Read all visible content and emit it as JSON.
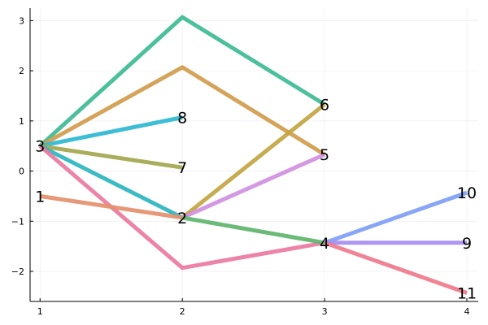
{
  "chart_data": {
    "type": "line",
    "title": "",
    "xlabel": "",
    "ylabel": "",
    "xlim": [
      0.93,
      4.08
    ],
    "ylim": [
      -2.6,
      3.25
    ],
    "x_ticks": [
      1,
      2,
      3,
      4
    ],
    "x_tick_labels": [
      "1",
      "2",
      "3",
      "4"
    ],
    "y_ticks": [
      -2,
      -1,
      0,
      1,
      2,
      3
    ],
    "y_tick_labels": [
      "−2",
      "−1",
      "0",
      "1",
      "2",
      "3"
    ],
    "grid": true,
    "legend": "none",
    "nodes": [
      {
        "id": "1",
        "x": 1,
        "y": -0.5
      },
      {
        "id": "3",
        "x": 1,
        "y": 0.5
      },
      {
        "id": "2",
        "x": 2,
        "y": -0.93
      },
      {
        "id": "7",
        "x": 2,
        "y": 0.07
      },
      {
        "id": "8",
        "x": 2,
        "y": 1.07
      },
      {
        "id": "6",
        "x": 3,
        "y": 1.33
      },
      {
        "id": "5",
        "x": 3,
        "y": 0.33
      },
      {
        "id": "4",
        "x": 3,
        "y": -1.43
      },
      {
        "id": "10",
        "x": 4,
        "y": -0.43
      },
      {
        "id": "9",
        "x": 4,
        "y": -1.43
      },
      {
        "id": "11",
        "x": 4,
        "y": -2.43
      }
    ],
    "edges": [
      {
        "points": [
          [
            1,
            0.5
          ],
          [
            2,
            3.07
          ],
          [
            3,
            1.33
          ]
        ],
        "color": "#3dbb95"
      },
      {
        "points": [
          [
            1,
            0.5
          ],
          [
            2,
            2.07
          ],
          [
            3,
            0.33
          ]
        ],
        "color": "#d19b4b"
      },
      {
        "points": [
          [
            1,
            0.5
          ],
          [
            2,
            1.07
          ]
        ],
        "color": "#2cb8d2"
      },
      {
        "points": [
          [
            1,
            0.5
          ],
          [
            2,
            0.07
          ]
        ],
        "color": "#a3a74e"
      },
      {
        "points": [
          [
            1,
            0.5
          ],
          [
            2,
            -0.93
          ]
        ],
        "color": "#2bb5bf"
      },
      {
        "points": [
          [
            1,
            0.5
          ],
          [
            2,
            -1.93
          ],
          [
            3,
            -1.43
          ]
        ],
        "color": "#ec7aa0"
      },
      {
        "points": [
          [
            1,
            -0.5
          ],
          [
            2,
            -0.93
          ]
        ],
        "color": "#e48f6d"
      },
      {
        "points": [
          [
            2,
            -0.93
          ],
          [
            3,
            1.33
          ]
        ],
        "color": "#c2a542"
      },
      {
        "points": [
          [
            2,
            -0.93
          ],
          [
            3,
            0.33
          ]
        ],
        "color": "#d18fdf"
      },
      {
        "points": [
          [
            2,
            -0.93
          ],
          [
            3,
            -1.43
          ]
        ],
        "color": "#5fb46c"
      },
      {
        "points": [
          [
            3,
            -1.43
          ],
          [
            4,
            -0.43
          ]
        ],
        "color": "#7f9ef5"
      },
      {
        "points": [
          [
            3,
            -1.43
          ],
          [
            4,
            -1.43
          ]
        ],
        "color": "#a58df0"
      },
      {
        "points": [
          [
            3,
            -1.43
          ],
          [
            4,
            -2.43
          ]
        ],
        "color": "#ef7a8c"
      }
    ]
  }
}
